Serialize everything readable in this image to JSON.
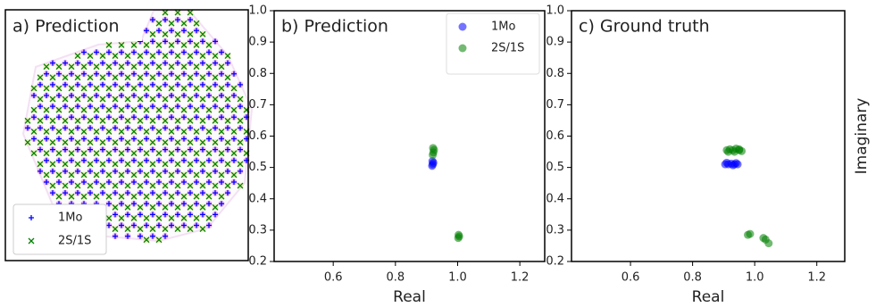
{
  "chart_data": [
    {
      "type": "image",
      "title": "a) Prediction",
      "series": [
        {
          "name": "1Mo",
          "color": "#0000ff",
          "marker": "+"
        },
        {
          "name": "2S/1S",
          "color": "#008000",
          "marker": "x"
        }
      ]
    },
    {
      "type": "scatter",
      "title": "b) Prediction",
      "xlabel": "Real",
      "legend": "upper right",
      "xlim": [
        0.41,
        1.28
      ],
      "ylim": [
        0.2,
        1.0
      ],
      "xticks": [
        0.6,
        0.8,
        {
          "value": 1,
          "label": "1.0"
        },
        1.2
      ],
      "yticks": [
        0.2,
        0.3,
        0.4,
        0.5,
        0.6,
        0.7,
        0.8,
        0.9,
        {
          "value": 1,
          "label": "1.0"
        }
      ],
      "series": [
        {
          "name": "1Mo",
          "color": "#0000ff",
          "x": [
            0.918,
            0.92,
            0.922,
            0.919
          ],
          "values": [
            0.505,
            0.51,
            0.515,
            0.52
          ]
        },
        {
          "name": "2S/1S",
          "color": "#008000",
          "x": [
            0.92,
            0.922,
            0.924,
            0.921,
            1.002,
            1.005,
            1.003
          ],
          "values": [
            0.54,
            0.548,
            0.556,
            0.562,
            0.275,
            0.28,
            0.285
          ]
        }
      ]
    },
    {
      "type": "scatter",
      "title": "c) Ground truth",
      "xlabel": "Real",
      "ylabel": "Imaginary",
      "xlim": [
        0.41,
        1.29
      ],
      "ylim": [
        0.2,
        1.0
      ],
      "xticks": [
        0.6,
        0.8,
        {
          "value": 1,
          "label": "1.0"
        },
        1.2
      ],
      "yticks": [
        0.2,
        0.3,
        0.4,
        0.5,
        0.6,
        0.7,
        0.8,
        0.9,
        {
          "value": 1,
          "label": "1.0"
        }
      ],
      "series": [
        {
          "color": "#0000ff",
          "x": [
            0.905,
            0.915,
            0.925,
            0.935,
            0.945,
            0.91,
            0.93,
            0.94
          ],
          "values": [
            0.51,
            0.51,
            0.512,
            0.51,
            0.51,
            0.515,
            0.507,
            0.514
          ]
        },
        {
          "color": "#008000",
          "x": [
            0.91,
            0.92,
            0.93,
            0.94,
            0.95,
            0.958,
            0.915,
            0.935,
            0.95,
            0.978,
            0.985,
            1.028,
            1.035,
            1.045
          ],
          "values": [
            0.555,
            0.558,
            0.555,
            0.56,
            0.555,
            0.552,
            0.55,
            0.55,
            0.558,
            0.285,
            0.288,
            0.275,
            0.27,
            0.258
          ]
        }
      ]
    }
  ]
}
